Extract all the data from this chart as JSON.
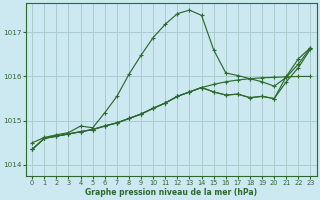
{
  "title": "Graphe pression niveau de la mer (hPa)",
  "bg_color": "#cce8f0",
  "grid_color": "#aacccc",
  "line_color": "#2d6a2d",
  "xlim": [
    -0.5,
    23.5
  ],
  "ylim": [
    1013.75,
    1017.65
  ],
  "yticks": [
    1014,
    1015,
    1016,
    1017
  ],
  "xticks": [
    0,
    1,
    2,
    3,
    4,
    5,
    6,
    7,
    8,
    9,
    10,
    11,
    12,
    13,
    14,
    15,
    16,
    17,
    18,
    19,
    20,
    21,
    22,
    23
  ],
  "line1_x": [
    0,
    1,
    2,
    3,
    4,
    5,
    6,
    7,
    8,
    9,
    10,
    11,
    12,
    13,
    14,
    15,
    16,
    17,
    18,
    19,
    20,
    21,
    22,
    23
  ],
  "line1_y": [
    1014.35,
    1014.6,
    1014.65,
    1014.7,
    1014.75,
    1014.8,
    1014.88,
    1014.95,
    1015.05,
    1015.15,
    1015.28,
    1015.4,
    1015.55,
    1015.65,
    1015.75,
    1015.82,
    1015.88,
    1015.92,
    1015.95,
    1015.97,
    1015.98,
    1015.99,
    1016.0,
    1016.0
  ],
  "line2_x": [
    0,
    1,
    2,
    3,
    4,
    5,
    6,
    7,
    8,
    9,
    10,
    11,
    12,
    13,
    14,
    15,
    16,
    17,
    18,
    19,
    20,
    21,
    22,
    23
  ],
  "line2_y": [
    1014.35,
    1014.6,
    1014.65,
    1014.7,
    1014.75,
    1014.8,
    1014.88,
    1014.95,
    1015.05,
    1015.15,
    1015.28,
    1015.4,
    1015.55,
    1015.65,
    1015.75,
    1015.65,
    1015.58,
    1015.6,
    1015.52,
    1015.55,
    1015.5,
    1015.88,
    1016.2,
    1016.62
  ],
  "line3_x": [
    0,
    1,
    2,
    3,
    4,
    5,
    6,
    7,
    8,
    9,
    10,
    11,
    12,
    13,
    14,
    15,
    16,
    17,
    18,
    19,
    20,
    21,
    22,
    23
  ],
  "line3_y": [
    1014.35,
    1014.6,
    1014.65,
    1014.7,
    1014.75,
    1014.8,
    1014.88,
    1014.95,
    1015.05,
    1015.15,
    1015.28,
    1015.4,
    1015.55,
    1015.65,
    1015.75,
    1015.65,
    1015.58,
    1015.6,
    1015.52,
    1015.55,
    1015.5,
    1016.0,
    1016.4,
    1016.65
  ],
  "line4_x": [
    0,
    1,
    2,
    3,
    4,
    5,
    6,
    7,
    8,
    9,
    10,
    11,
    12,
    13,
    14,
    15,
    16,
    17,
    18,
    19,
    20,
    21,
    22,
    23
  ],
  "line4_y": [
    1014.5,
    1014.62,
    1014.68,
    1014.73,
    1014.88,
    1014.84,
    1015.18,
    1015.55,
    1016.05,
    1016.48,
    1016.88,
    1017.18,
    1017.42,
    1017.5,
    1017.38,
    1016.6,
    1016.08,
    1016.02,
    1015.95,
    1015.88,
    1015.78,
    1015.98,
    1016.28,
    1016.65
  ]
}
